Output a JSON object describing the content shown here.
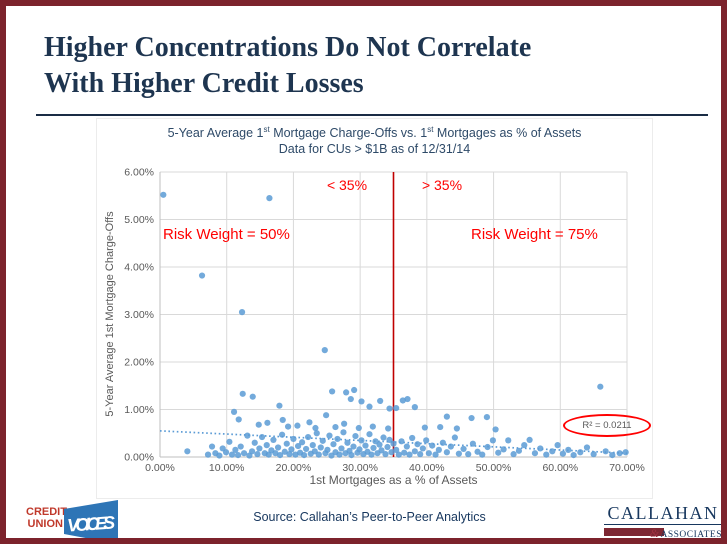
{
  "slide": {
    "title_line1": "Higher Concentrations Do Not Correlate",
    "title_line2": "With Higher Credit Losses",
    "source": "Source: Callahan’s Peer-to-Peer Analytics"
  },
  "logos": {
    "credit_union": {
      "line1": "CREDIT",
      "line2": "UNION",
      "voices": "VOICES"
    },
    "callahan": {
      "name": "CALLAHAN",
      "amp": "&",
      "associates": "ASSOCIATES"
    }
  },
  "colors": {
    "slide_border": "#7c232c",
    "title_navy": "#1e3550",
    "chart_title_navy": "#2e4a68",
    "axis_gray": "#595959",
    "gridline": "#d9d9d9",
    "dot_blue": "#5b9bd5",
    "annotation_red": "#ff0000",
    "divider_red": "#c00000",
    "logo_red": "#c0392b",
    "logo_blue": "#2e75b6",
    "callahan_navy": "#17375e",
    "callahan_bar": "#7d2733"
  },
  "chart_data": {
    "type": "scatter",
    "title_line1": "5-Year Average 1st Mortgage Charge-Offs vs. 1st Mortgages as % of Assets",
    "title_line2": "Data for CUs > $1B as of 12/31/14",
    "xlabel": "1st Mortgages as a % of Assets",
    "ylabel": "5-Year Average 1st Mortgage Charge-Offs",
    "xlim": [
      0,
      70
    ],
    "ylim": [
      0,
      6
    ],
    "x_ticks": [
      "0.00%",
      "10.00%",
      "20.00%",
      "30.00%",
      "40.00%",
      "50.00%",
      "60.00%",
      "70.00%"
    ],
    "y_ticks": [
      "0.00%",
      "1.00%",
      "2.00%",
      "3.00%",
      "4.00%",
      "5.00%",
      "6.00%"
    ],
    "grid": true,
    "divider_x": 35,
    "annotations": {
      "left_label": "< 35%",
      "right_label": "> 35%",
      "left_risk": "Risk Weight = 50%",
      "right_risk": "Risk Weight = 75%",
      "r_squared": "R² = 0.0211"
    },
    "trendline": {
      "x1": 0,
      "y1": 0.55,
      "x2": 70,
      "y2": 0.08
    },
    "points": [
      [
        0.5,
        5.52
      ],
      [
        16.4,
        5.45
      ],
      [
        6.3,
        3.82
      ],
      [
        12.3,
        3.05
      ],
      [
        24.7,
        2.25
      ],
      [
        66.0,
        1.48
      ],
      [
        12.4,
        1.33
      ],
      [
        13.9,
        1.27
      ],
      [
        17.9,
        1.08
      ],
      [
        25.8,
        1.38
      ],
      [
        27.9,
        1.36
      ],
      [
        28.6,
        1.22
      ],
      [
        29.1,
        1.41
      ],
      [
        30.2,
        1.17
      ],
      [
        31.4,
        1.06
      ],
      [
        33.0,
        1.18
      ],
      [
        34.4,
        1.02
      ],
      [
        35.4,
        1.03
      ],
      [
        36.4,
        1.19
      ],
      [
        37.1,
        1.22
      ],
      [
        38.2,
        1.05
      ],
      [
        43.0,
        0.85
      ],
      [
        46.7,
        0.82
      ],
      [
        11.1,
        0.95
      ],
      [
        11.8,
        0.79
      ],
      [
        14.8,
        0.68
      ],
      [
        16.1,
        0.72
      ],
      [
        18.4,
        0.78
      ],
      [
        19.2,
        0.64
      ],
      [
        20.6,
        0.66
      ],
      [
        22.4,
        0.73
      ],
      [
        23.3,
        0.61
      ],
      [
        24.9,
        0.88
      ],
      [
        26.3,
        0.63
      ],
      [
        27.6,
        0.7
      ],
      [
        29.8,
        0.61
      ],
      [
        31.9,
        0.64
      ],
      [
        34.2,
        0.6
      ],
      [
        39.7,
        0.62
      ],
      [
        42.0,
        0.63
      ],
      [
        44.5,
        0.6
      ],
      [
        49.0,
        0.84
      ],
      [
        50.3,
        0.58
      ],
      [
        4.1,
        0.12
      ],
      [
        7.2,
        0.05
      ],
      [
        7.8,
        0.22
      ],
      [
        8.3,
        0.08
      ],
      [
        8.9,
        0.03
      ],
      [
        9.4,
        0.18
      ],
      [
        9.9,
        0.1
      ],
      [
        10.4,
        0.32
      ],
      [
        10.8,
        0.05
      ],
      [
        11.3,
        0.15
      ],
      [
        11.7,
        0.04
      ],
      [
        12.1,
        0.22
      ],
      [
        12.6,
        0.08
      ],
      [
        13.1,
        0.45
      ],
      [
        13.4,
        0.03
      ],
      [
        13.8,
        0.12
      ],
      [
        14.2,
        0.3
      ],
      [
        14.6,
        0.06
      ],
      [
        14.9,
        0.18
      ],
      [
        15.3,
        0.42
      ],
      [
        15.7,
        0.08
      ],
      [
        16.0,
        0.25
      ],
      [
        16.3,
        0.05
      ],
      [
        16.7,
        0.14
      ],
      [
        17.0,
        0.36
      ],
      [
        17.3,
        0.08
      ],
      [
        17.7,
        0.2
      ],
      [
        18.0,
        0.04
      ],
      [
        18.3,
        0.47
      ],
      [
        18.7,
        0.11
      ],
      [
        19.0,
        0.28
      ],
      [
        19.4,
        0.06
      ],
      [
        19.7,
        0.16
      ],
      [
        20.0,
        0.38
      ],
      [
        20.3,
        0.05
      ],
      [
        20.7,
        0.23
      ],
      [
        21.0,
        0.09
      ],
      [
        21.3,
        0.31
      ],
      [
        21.6,
        0.04
      ],
      [
        21.9,
        0.17
      ],
      [
        22.2,
        0.42
      ],
      [
        22.6,
        0.07
      ],
      [
        22.9,
        0.25
      ],
      [
        23.2,
        0.12
      ],
      [
        23.5,
        0.5
      ],
      [
        23.8,
        0.05
      ],
      [
        24.1,
        0.2
      ],
      [
        24.4,
        0.34
      ],
      [
        24.8,
        0.08
      ],
      [
        25.1,
        0.15
      ],
      [
        25.4,
        0.45
      ],
      [
        25.7,
        0.03
      ],
      [
        26.0,
        0.27
      ],
      [
        26.3,
        0.1
      ],
      [
        26.6,
        0.38
      ],
      [
        26.9,
        0.05
      ],
      [
        27.2,
        0.18
      ],
      [
        27.5,
        0.52
      ],
      [
        27.8,
        0.08
      ],
      [
        28.1,
        0.3
      ],
      [
        28.4,
        0.13
      ],
      [
        28.7,
        0.04
      ],
      [
        29.0,
        0.22
      ],
      [
        29.3,
        0.44
      ],
      [
        29.6,
        0.09
      ],
      [
        29.9,
        0.16
      ],
      [
        30.2,
        0.35
      ],
      [
        30.5,
        0.06
      ],
      [
        30.8,
        0.24
      ],
      [
        31.1,
        0.11
      ],
      [
        31.4,
        0.48
      ],
      [
        31.7,
        0.05
      ],
      [
        32.0,
        0.19
      ],
      [
        32.3,
        0.33
      ],
      [
        32.6,
        0.08
      ],
      [
        32.9,
        0.26
      ],
      [
        33.2,
        0.14
      ],
      [
        33.5,
        0.41
      ],
      [
        33.8,
        0.06
      ],
      [
        34.1,
        0.21
      ],
      [
        34.4,
        0.36
      ],
      [
        34.7,
        0.1
      ],
      [
        35.0,
        0.28
      ],
      [
        35.4,
        0.15
      ],
      [
        35.8,
        0.05
      ],
      [
        36.2,
        0.33
      ],
      [
        36.6,
        0.09
      ],
      [
        37.0,
        0.22
      ],
      [
        37.4,
        0.05
      ],
      [
        37.8,
        0.4
      ],
      [
        38.2,
        0.12
      ],
      [
        38.6,
        0.27
      ],
      [
        39.0,
        0.06
      ],
      [
        39.4,
        0.18
      ],
      [
        39.9,
        0.35
      ],
      [
        40.3,
        0.08
      ],
      [
        40.8,
        0.24
      ],
      [
        41.3,
        0.05
      ],
      [
        41.8,
        0.15
      ],
      [
        42.4,
        0.3
      ],
      [
        43.0,
        0.1
      ],
      [
        43.6,
        0.22
      ],
      [
        44.2,
        0.41
      ],
      [
        44.8,
        0.07
      ],
      [
        45.5,
        0.17
      ],
      [
        46.2,
        0.06
      ],
      [
        46.9,
        0.28
      ],
      [
        47.6,
        0.11
      ],
      [
        48.3,
        0.05
      ],
      [
        49.1,
        0.21
      ],
      [
        49.9,
        0.35
      ],
      [
        50.7,
        0.09
      ],
      [
        51.5,
        0.16
      ],
      [
        52.2,
        0.35
      ],
      [
        53.0,
        0.06
      ],
      [
        53.8,
        0.13
      ],
      [
        54.6,
        0.25
      ],
      [
        55.4,
        0.36
      ],
      [
        56.2,
        0.08
      ],
      [
        57.0,
        0.18
      ],
      [
        57.9,
        0.05
      ],
      [
        58.8,
        0.12
      ],
      [
        59.6,
        0.25
      ],
      [
        60.4,
        0.07
      ],
      [
        61.2,
        0.15
      ],
      [
        62.0,
        0.04
      ],
      [
        63.0,
        0.1
      ],
      [
        64.0,
        0.2
      ],
      [
        65.0,
        0.06
      ],
      [
        66.8,
        0.12
      ],
      [
        67.8,
        0.04
      ],
      [
        68.9,
        0.08
      ],
      [
        69.8,
        0.1
      ]
    ]
  }
}
